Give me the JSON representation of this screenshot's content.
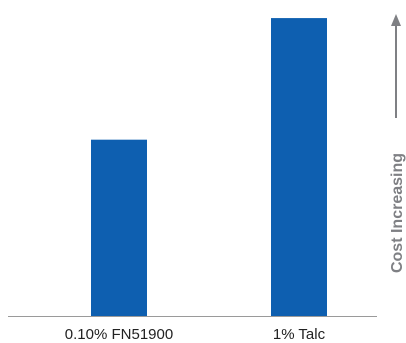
{
  "chart_data": {
    "type": "bar",
    "categories": [
      "0.10% FN51900",
      "1% Talc"
    ],
    "values": [
      58,
      98
    ],
    "ylim": [
      0,
      100
    ],
    "grid": false,
    "bar_color": "#0e5fb0",
    "annotation": {
      "text": "Cost Increasing",
      "arrow_direction": "up",
      "color": "#7f8084"
    },
    "axis_color": "#9a9a9a"
  }
}
